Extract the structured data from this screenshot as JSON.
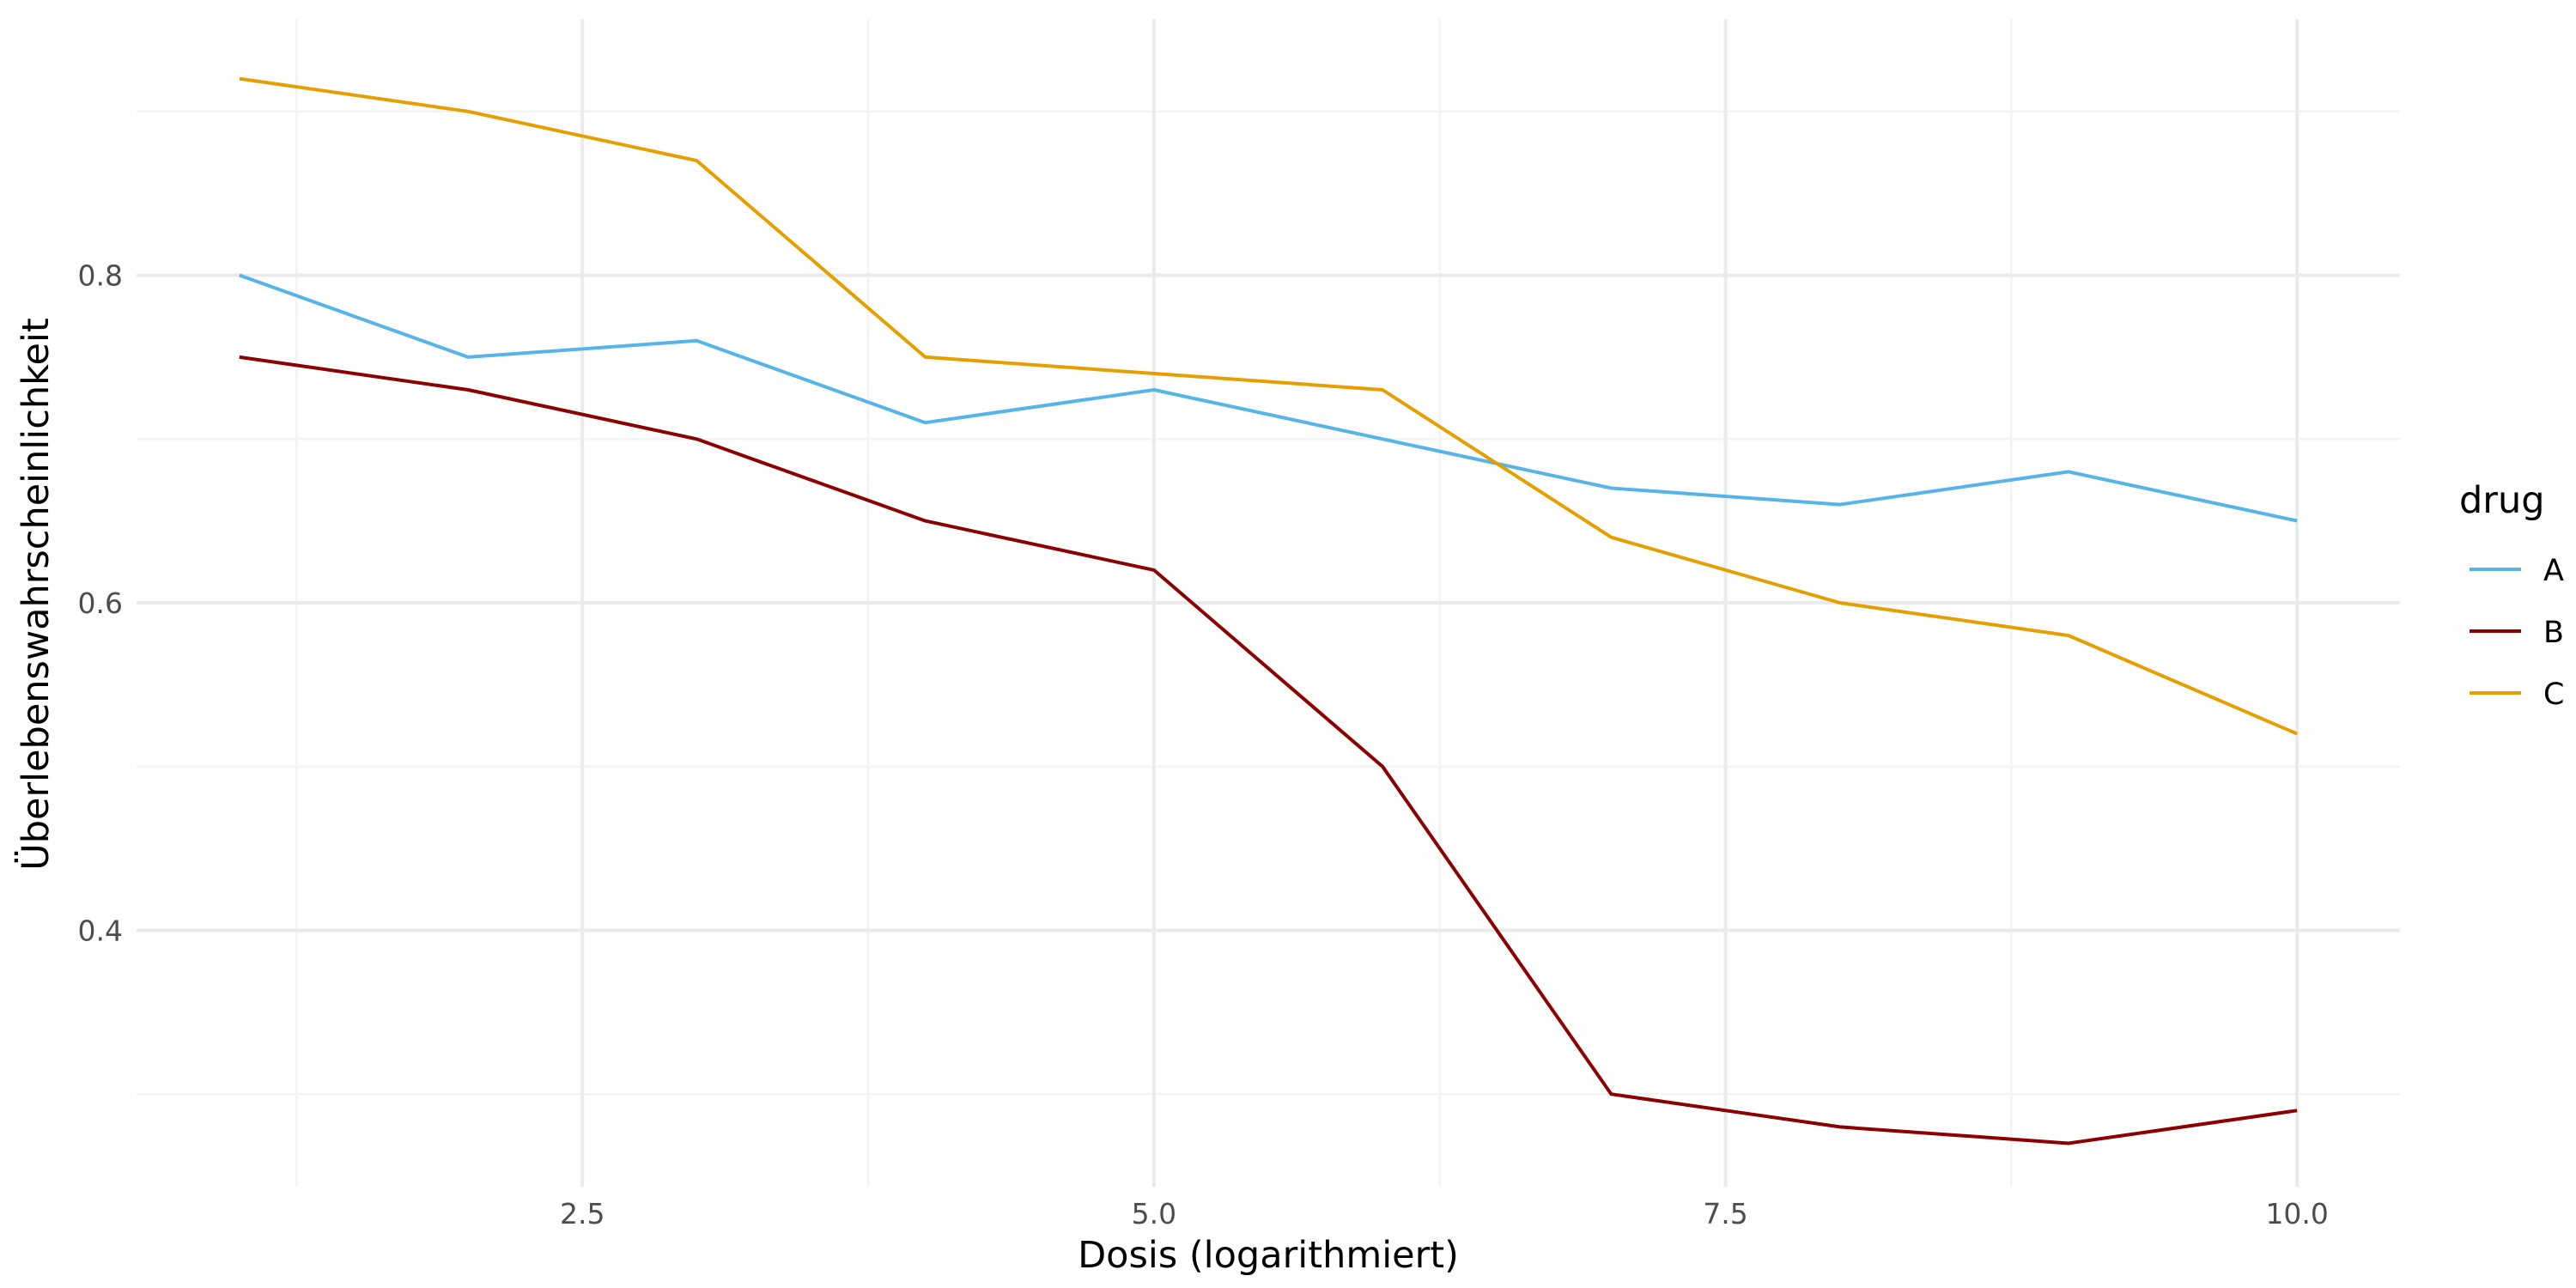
{
  "chart_data": {
    "type": "line",
    "title": "",
    "xlabel": "Dosis (logarithmiert)",
    "ylabel": "Überlebenswahrscheinlichkeit",
    "x": [
      1,
      2,
      3,
      4,
      5,
      6,
      7,
      8,
      9,
      10
    ],
    "xlim": [
      0.55,
      10.45
    ],
    "ylim": [
      0.2435,
      0.9565
    ],
    "x_ticks": [
      2.5,
      5.0,
      7.5,
      10.0
    ],
    "x_tick_labels": [
      "2.5",
      "5.0",
      "7.5",
      "10.0"
    ],
    "y_ticks": [
      0.4,
      0.6,
      0.8
    ],
    "y_tick_labels": [
      "0.4",
      "0.6",
      "0.8"
    ],
    "grid": true,
    "legend": {
      "title": "drug",
      "placement": "right"
    },
    "series": [
      {
        "name": "A",
        "color": "#56B4E9",
        "values": [
          0.8,
          0.75,
          0.76,
          0.71,
          0.73,
          0.7,
          0.67,
          0.66,
          0.68,
          0.65
        ]
      },
      {
        "name": "B",
        "color": "#8B0000",
        "values": [
          0.75,
          0.73,
          0.7,
          0.65,
          0.62,
          0.5,
          0.3,
          0.28,
          0.27,
          0.29
        ]
      },
      {
        "name": "C",
        "color": "#E69F00",
        "values": [
          0.92,
          0.9,
          0.87,
          0.75,
          0.74,
          0.73,
          0.64,
          0.6,
          0.58,
          0.52
        ]
      }
    ]
  }
}
